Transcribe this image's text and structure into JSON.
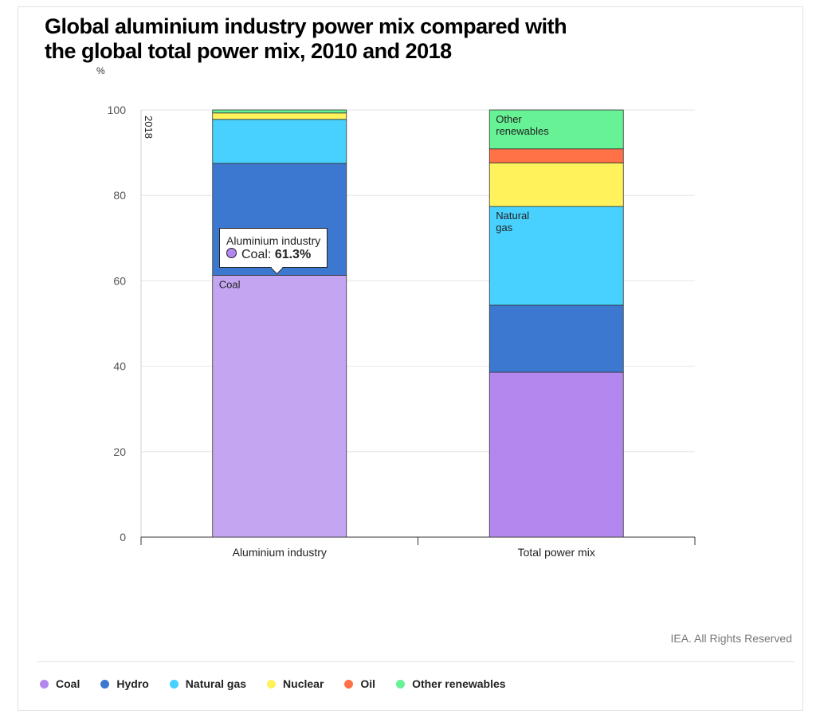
{
  "title": "Global aluminium industry power mix compared with the global total power mix, 2010 and 2018",
  "credit": "IEA. All Rights Reserved",
  "chart_data": {
    "type": "bar",
    "stacked": true,
    "title": "Global aluminium industry power mix compared with the global total power mix, 2010 and 2018",
    "ylabel": "%",
    "ylim": [
      0,
      100
    ],
    "yticks": [
      0,
      20,
      40,
      60,
      80,
      100
    ],
    "year_label": "2018",
    "categories": [
      "Aluminium industry",
      "Total power mix"
    ],
    "series": [
      {
        "name": "Coal",
        "color": "#b388ee",
        "values": [
          61.3,
          38.6
        ]
      },
      {
        "name": "Hydro",
        "color": "#3c78d0",
        "values": [
          26.2,
          15.7
        ]
      },
      {
        "name": "Natural gas",
        "color": "#48d1fe",
        "values": [
          10.3,
          23.1
        ]
      },
      {
        "name": "Nuclear",
        "color": "#fff25a",
        "values": [
          1.5,
          10.2
        ]
      },
      {
        "name": "Oil",
        "color": "#ff7248",
        "values": [
          0,
          3.3
        ]
      },
      {
        "name": "Other renewables",
        "color": "#66f295",
        "values": [
          0.7,
          9.1
        ]
      }
    ],
    "bar_labels": [
      {
        "category": "Aluminium industry",
        "series": "Coal",
        "text": "Coal"
      },
      {
        "category": "Total power mix",
        "series": "Natural gas",
        "text": "Natural gas"
      },
      {
        "category": "Total power mix",
        "series": "Other renewables",
        "text": "Other renewables"
      }
    ],
    "tooltip": {
      "title": "Aluminium industry",
      "series": "Coal",
      "label": "Coal:",
      "value": "61.3%"
    },
    "grid": true,
    "legend": "bottom"
  }
}
